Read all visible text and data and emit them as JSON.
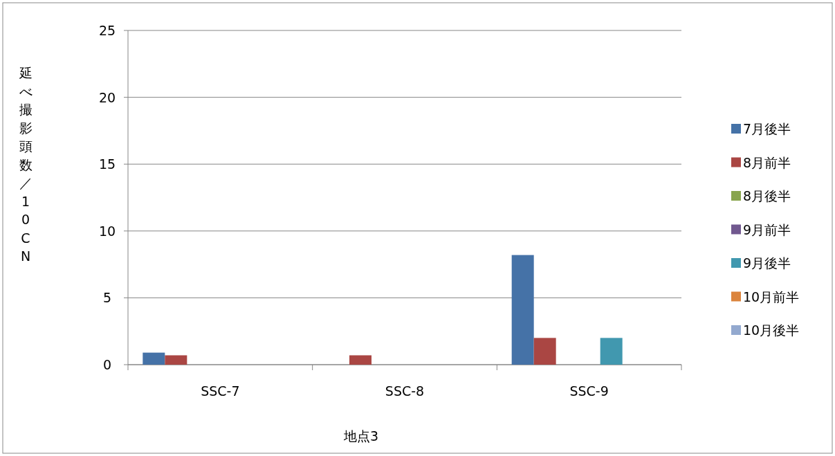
{
  "chart_data": {
    "type": "bar",
    "categories": [
      "SSC-7",
      "SSC-8",
      "SSC-9"
    ],
    "series": [
      {
        "name": "7月後半",
        "color": "#4572a7",
        "values": [
          0.9,
          0,
          8.2
        ]
      },
      {
        "name": "8月前半",
        "color": "#aa4643",
        "values": [
          0.7,
          0.7,
          2.0
        ]
      },
      {
        "name": "8月後半",
        "color": "#89a54e",
        "values": [
          0,
          0,
          0
        ]
      },
      {
        "name": "9月前半",
        "color": "#71588f",
        "values": [
          0,
          0,
          0
        ]
      },
      {
        "name": "9月後半",
        "color": "#4198af",
        "values": [
          0,
          0,
          2.0
        ]
      },
      {
        "name": "10月前半",
        "color": "#db843d",
        "values": [
          0,
          0,
          0
        ]
      },
      {
        "name": "10月後半",
        "color": "#93a9cf",
        "values": [
          0,
          0,
          0
        ]
      }
    ],
    "ylim": [
      0,
      25
    ],
    "yticks": [
      0,
      5,
      10,
      15,
      20,
      25
    ],
    "ylabel": "延べ撮影頭数／10CN",
    "xlabel": "地点3",
    "grid": "y",
    "legend": "right"
  }
}
